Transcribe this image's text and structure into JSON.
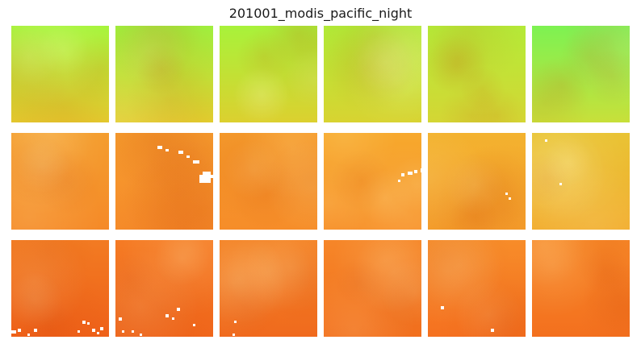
{
  "figure": {
    "title": "201001_modis_pacific_night"
  },
  "panels": {
    "rows": 3,
    "cols": 6,
    "row_gradients": [
      {
        "top_colors": [
          "#a6f53b",
          "#9ef43f",
          "#a8f23a",
          "#b0ee38",
          "#b4ec38",
          "#7df252"
        ],
        "bottom_colors": [
          "#e4c92e",
          "#e2cb2e",
          "#dcd02f",
          "#d8d331",
          "#d4d634",
          "#c8e03a"
        ]
      },
      {
        "top_colors": [
          "#f49d2e",
          "#f59b2e",
          "#f59b2c",
          "#f7a92d",
          "#f3b22f",
          "#e9c334"
        ],
        "bottom_colors": [
          "#f58a28",
          "#f68c2a",
          "#f68d29",
          "#f79029",
          "#f6a12d",
          "#f2ad2f"
        ]
      },
      {
        "top_colors": [
          "#f27b22",
          "#f57b24",
          "#f48326",
          "#f68628",
          "#f78c29",
          "#f78828"
        ],
        "bottom_colors": [
          "#ef6119",
          "#f0661b",
          "#f06a1d",
          "#f2701e",
          "#f57120",
          "#f3701e"
        ]
      }
    ],
    "cloud_mask_color": "#ffffff"
  }
}
